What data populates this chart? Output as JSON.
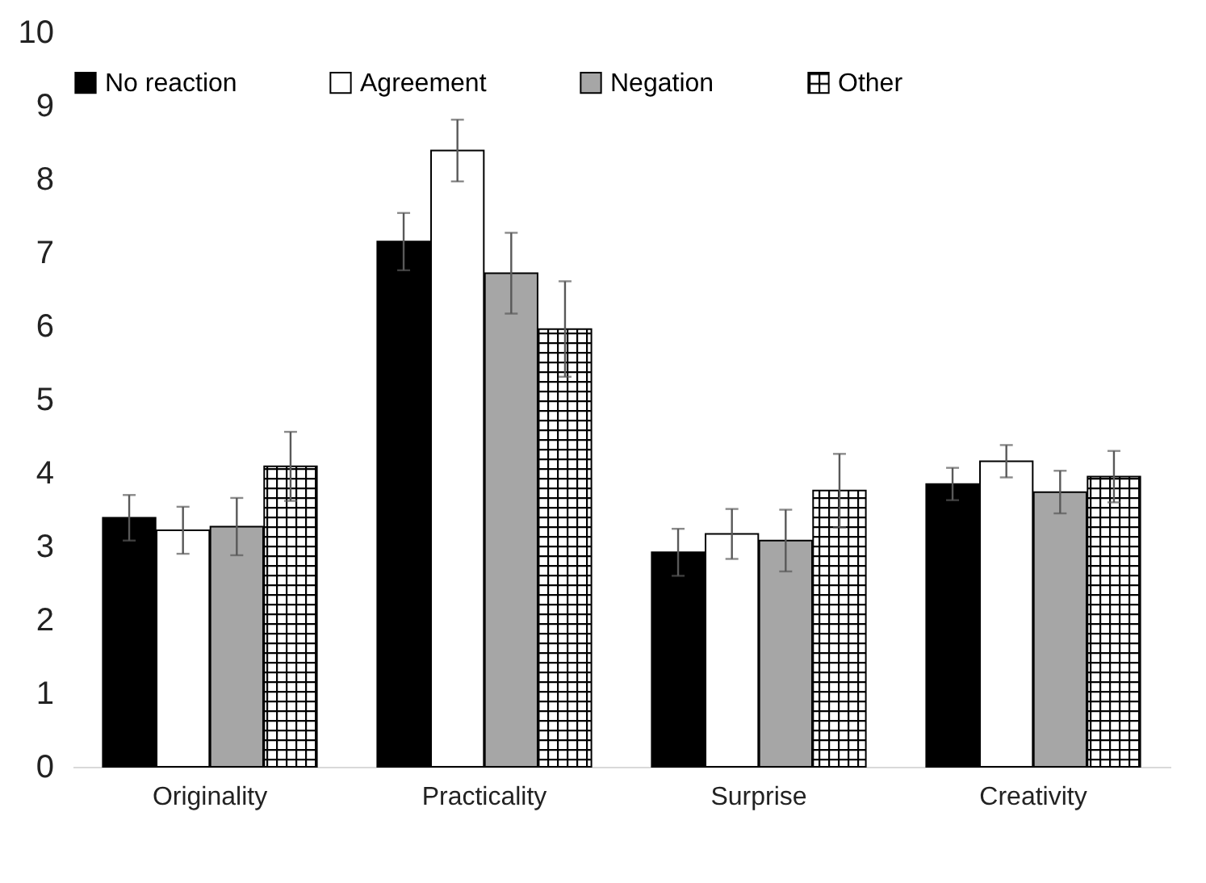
{
  "chart_data": {
    "type": "bar",
    "categories": [
      "Originality",
      "Practicality",
      "Surprise",
      "Creativity"
    ],
    "series": [
      {
        "name": "No reaction",
        "color": "#000000",
        "values": [
          3.39,
          7.15,
          2.92,
          3.85
        ],
        "errors": [
          0.31,
          0.39,
          0.32,
          0.22
        ]
      },
      {
        "name": "Agreement",
        "color": "#ffffff",
        "values": [
          3.22,
          8.39,
          3.17,
          4.16
        ],
        "errors": [
          0.32,
          0.42,
          0.34,
          0.22
        ]
      },
      {
        "name": "Negation",
        "color": "#a6a6a6",
        "values": [
          3.27,
          6.72,
          3.08,
          3.74
        ],
        "errors": [
          0.39,
          0.55,
          0.42,
          0.29
        ]
      },
      {
        "name": "Other",
        "color": "#000000",
        "values": [
          4.09,
          5.96,
          3.76,
          3.95
        ],
        "errors": [
          0.47,
          0.65,
          0.5,
          0.35
        ]
      }
    ],
    "ylim": [
      0,
      10
    ],
    "yticks": [
      0,
      1,
      2,
      3,
      4,
      5,
      6,
      7,
      8,
      9,
      10
    ],
    "grid": false,
    "legend": "top"
  }
}
